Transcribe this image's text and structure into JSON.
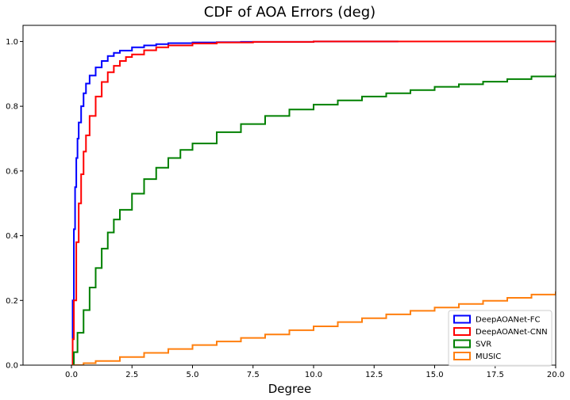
{
  "chart_data": {
    "type": "line",
    "title": "CDF of AOA Errors (deg)",
    "xlabel": "Degree",
    "ylabel": "",
    "xlim": [
      -2,
      20
    ],
    "ylim": [
      0,
      1.05
    ],
    "xticks": [
      0.0,
      2.5,
      5.0,
      7.5,
      10.0,
      12.5,
      15.0,
      17.5,
      20.0
    ],
    "xtick_labels": [
      "0.0",
      "2.5",
      "5.0",
      "7.5",
      "10.0",
      "12.5",
      "15.0",
      "17.5",
      "20.0"
    ],
    "yticks": [
      0.0,
      0.2,
      0.4,
      0.6,
      0.8,
      1.0
    ],
    "ytick_labels": [
      "0.0",
      "0.2",
      "0.4",
      "0.6",
      "0.8",
      "1.0"
    ],
    "grid": false,
    "legend_position": "lower-right",
    "step": true,
    "series": [
      {
        "name": "DeepAOANet-FC",
        "color": "#0000ff",
        "x": [
          0,
          0.05,
          0.1,
          0.15,
          0.2,
          0.25,
          0.3,
          0.4,
          0.5,
          0.6,
          0.75,
          1.0,
          1.25,
          1.5,
          1.75,
          2.0,
          2.5,
          3.0,
          3.5,
          4.0,
          5.0,
          6.0,
          7.0,
          8.0,
          10.0,
          12.0,
          13.5
        ],
        "y": [
          0,
          0.2,
          0.42,
          0.55,
          0.64,
          0.7,
          0.75,
          0.8,
          0.84,
          0.87,
          0.895,
          0.92,
          0.94,
          0.955,
          0.965,
          0.972,
          0.982,
          0.988,
          0.992,
          0.995,
          0.997,
          0.998,
          0.999,
          0.999,
          1.0,
          1.0,
          1.0
        ]
      },
      {
        "name": "DeepAOANet-CNN",
        "color": "#ff0000",
        "x": [
          0,
          0.05,
          0.1,
          0.2,
          0.3,
          0.4,
          0.5,
          0.6,
          0.75,
          1.0,
          1.25,
          1.5,
          1.75,
          2.0,
          2.25,
          2.5,
          3.0,
          3.5,
          4.0,
          5.0,
          6.0,
          7.5,
          10.0,
          15.0,
          20.0
        ],
        "y": [
          0,
          0.08,
          0.2,
          0.38,
          0.5,
          0.59,
          0.66,
          0.71,
          0.77,
          0.83,
          0.875,
          0.905,
          0.925,
          0.94,
          0.952,
          0.96,
          0.973,
          0.982,
          0.988,
          0.994,
          0.997,
          0.999,
          1.0,
          1.0,
          1.0
        ]
      },
      {
        "name": "SVR",
        "color": "#008000",
        "x": [
          0,
          0.1,
          0.25,
          0.5,
          0.75,
          1.0,
          1.25,
          1.5,
          1.75,
          2.0,
          2.5,
          3.0,
          3.5,
          4.0,
          4.5,
          5.0,
          6.0,
          7.0,
          8.0,
          9.0,
          10.0,
          11.0,
          12.0,
          13.0,
          14.0,
          15.0,
          16.0,
          17.0,
          18.0,
          19.0,
          20.0
        ],
        "y": [
          0,
          0.04,
          0.1,
          0.17,
          0.24,
          0.3,
          0.36,
          0.41,
          0.45,
          0.48,
          0.53,
          0.575,
          0.61,
          0.64,
          0.665,
          0.685,
          0.72,
          0.745,
          0.77,
          0.79,
          0.805,
          0.818,
          0.83,
          0.84,
          0.85,
          0.86,
          0.868,
          0.876,
          0.884,
          0.892,
          0.9
        ]
      },
      {
        "name": "MUSIC",
        "color": "#ff7f0e",
        "x": [
          0,
          0.5,
          1.0,
          2.0,
          3.0,
          4.0,
          5.0,
          6.0,
          7.0,
          8.0,
          9.0,
          10.0,
          11.0,
          12.0,
          13.0,
          14.0,
          15.0,
          16.0,
          17.0,
          18.0,
          19.0,
          20.0
        ],
        "y": [
          0,
          0.006,
          0.013,
          0.025,
          0.038,
          0.05,
          0.062,
          0.073,
          0.084,
          0.095,
          0.108,
          0.12,
          0.133,
          0.145,
          0.157,
          0.168,
          0.178,
          0.189,
          0.199,
          0.208,
          0.218,
          0.228
        ]
      }
    ]
  }
}
